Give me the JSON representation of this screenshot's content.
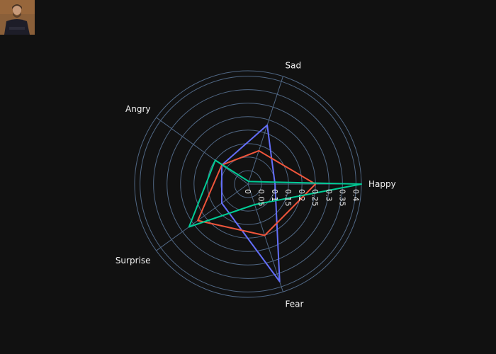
{
  "image": {
    "icon": "portrait-photo-icon",
    "colors": {
      "bg": "#8a5f39",
      "coat": "#1d1d28",
      "face": "#c79a7a",
      "hair": "#4a3424"
    }
  },
  "chart_data": {
    "type": "radar",
    "categories": [
      "Happy",
      "Sad",
      "Angry",
      "Surprise",
      "Fear"
    ],
    "radial_range": [
      0,
      0.42
    ],
    "tick_values": [
      0,
      0.05,
      0.1,
      0.15,
      0.2,
      0.25,
      0.3,
      0.35,
      0.4
    ],
    "tick_labels": [
      "0",
      "0.05",
      "0.1",
      "0.15",
      "0.2",
      "0.25",
      "0.3",
      "0.35",
      "0.4"
    ],
    "grid": true,
    "colors": {
      "grid": "#506784",
      "text": "#f2f2f2",
      "background": "#111111"
    },
    "series": [
      {
        "color": "#636efa",
        "values": [
          0.1,
          0.23,
          0.12,
          0.12,
          0.38
        ]
      },
      {
        "color": "#ef553b",
        "values": [
          0.25,
          0.13,
          0.12,
          0.23,
          0.2
        ]
      },
      {
        "color": "#00cc96",
        "values": [
          0.42,
          0.01,
          0.15,
          0.27,
          0.08
        ]
      }
    ]
  }
}
